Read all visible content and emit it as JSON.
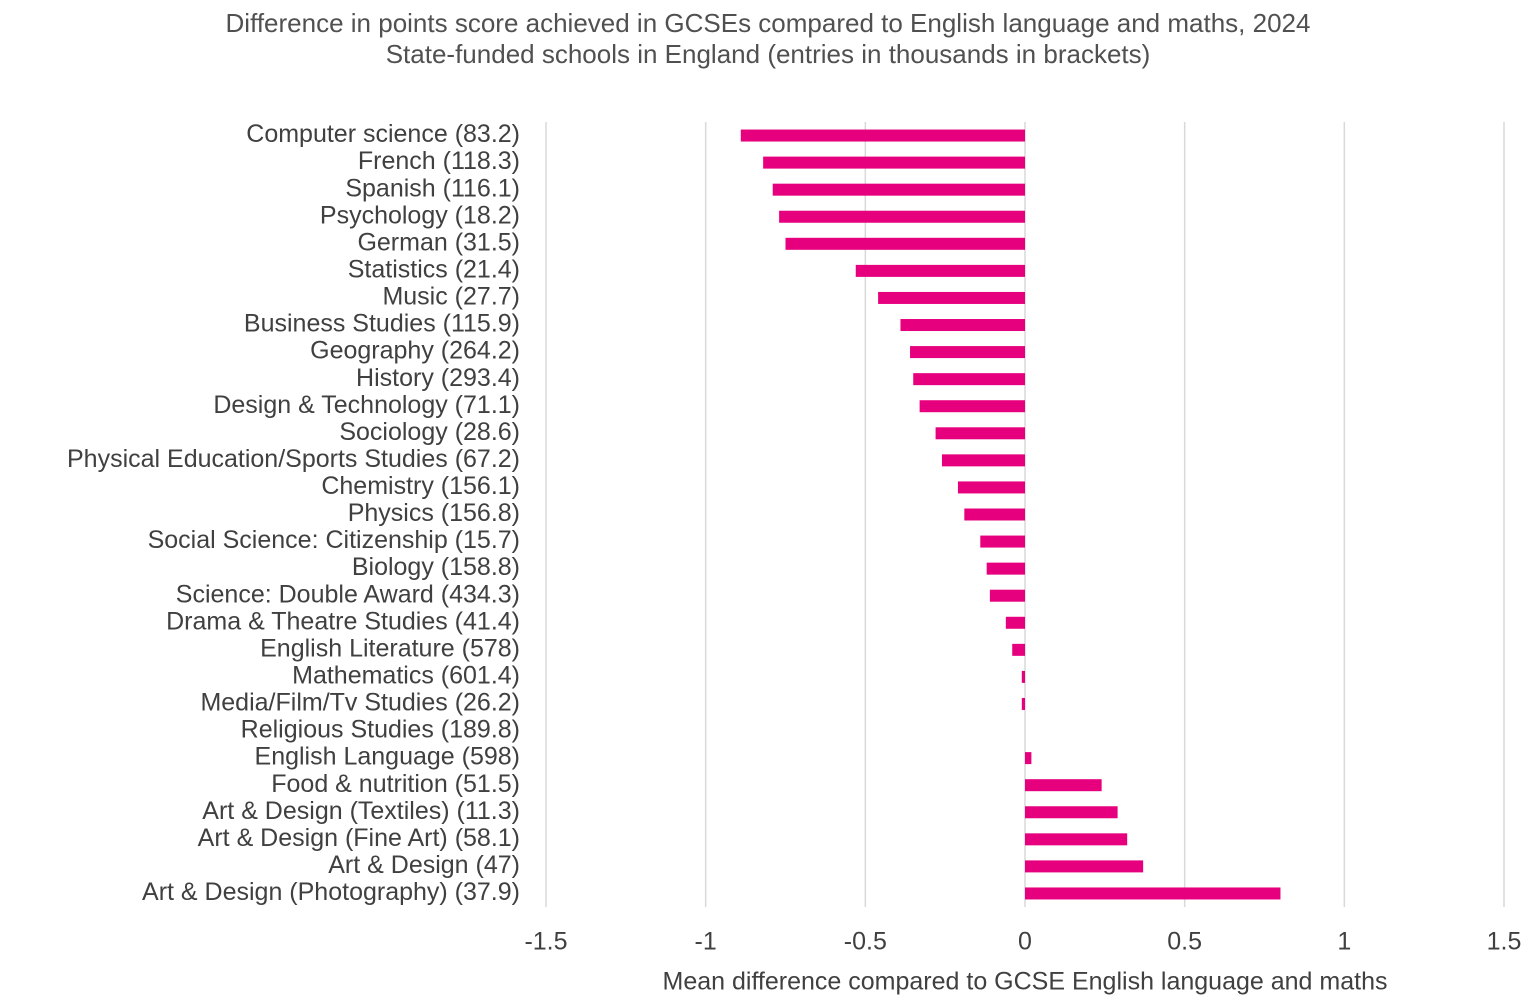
{
  "chart_data": {
    "type": "bar",
    "orientation": "horizontal",
    "title": "Difference in points score achieved in GCSEs compared to English language and maths, 2024",
    "subtitle": "State-funded schools in England (entries in thousands in brackets)",
    "x_label": "Mean difference compared to GCSE English language and maths",
    "categories": [
      "Computer science (83.2)",
      "French (118.3)",
      "Spanish (116.1)",
      "Psychology (18.2)",
      "German (31.5)",
      "Statistics (21.4)",
      "Music (27.7)",
      "Business Studies (115.9)",
      "Geography (264.2)",
      "History (293.4)",
      "Design & Technology (71.1)",
      "Sociology (28.6)",
      "Physical Education/Sports Studies (67.2)",
      "Chemistry (156.1)",
      "Physics (156.8)",
      "Social Science: Citizenship (15.7)",
      "Biology (158.8)",
      "Science: Double Award (434.3)",
      "Drama & Theatre Studies (41.4)",
      "English Literature (578)",
      "Mathematics (601.4)",
      "Media/Film/Tv Studies (26.2)",
      "Religious Studies (189.8)",
      "English Language (598)",
      "Food & nutrition (51.5)",
      "Art & Design (Textiles) (11.3)",
      "Art & Design (Fine Art) (58.1)",
      "Art & Design (47)",
      "Art & Design (Photography) (37.9)"
    ],
    "values": [
      -0.89,
      -0.82,
      -0.79,
      -0.77,
      -0.75,
      -0.53,
      -0.46,
      -0.39,
      -0.36,
      -0.35,
      -0.33,
      -0.28,
      -0.26,
      -0.21,
      -0.19,
      -0.14,
      -0.12,
      -0.11,
      -0.06,
      -0.04,
      -0.01,
      -0.01,
      0,
      0.02,
      0.24,
      0.29,
      0.32,
      0.37,
      0.8
    ],
    "color": "#e6007e",
    "xlim": [
      -1.5,
      1.5
    ],
    "xticks": [
      -1.5,
      -1,
      -0.5,
      0,
      0.5,
      1,
      1.5
    ],
    "grid": true
  }
}
